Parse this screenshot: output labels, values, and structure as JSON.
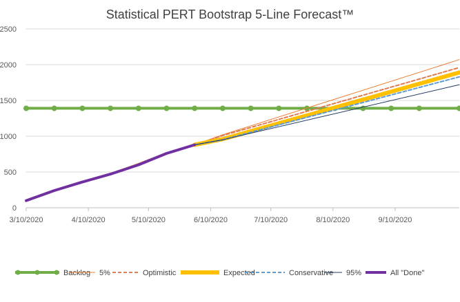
{
  "chart_data": {
    "type": "line",
    "title": "Statistical PERT Bootstrap 5-Line Forecast™",
    "xlabel": "",
    "ylabel": "",
    "x_axis": {
      "min_day": 0,
      "max_day": 216,
      "ticks": [
        {
          "day": 0,
          "label": "3/10/2020"
        },
        {
          "day": 31,
          "label": "4/10/2020"
        },
        {
          "day": 61,
          "label": "5/10/2020"
        },
        {
          "day": 92,
          "label": "6/10/2020"
        },
        {
          "day": 122,
          "label": "7/10/2020"
        },
        {
          "day": 153,
          "label": "8/10/2020"
        },
        {
          "day": 184,
          "label": "9/10/2020"
        }
      ]
    },
    "y_axis": {
      "min": 0,
      "max": 2500,
      "ticks": [
        {
          "value": 0,
          "label": "0"
        },
        {
          "value": 500,
          "label": "500"
        },
        {
          "value": 1000,
          "label": "1000"
        },
        {
          "value": 1500,
          "label": "1500"
        },
        {
          "value": 2000,
          "label": "2000"
        },
        {
          "value": 2500,
          "label": "2500"
        }
      ]
    },
    "grid": true,
    "legend_position": "bottom",
    "series": [
      {
        "name": "Backlog",
        "color": "#70ad47",
        "style": "solid",
        "width": 4,
        "markers": true,
        "points": [
          [
            0,
            1390
          ],
          [
            14,
            1390
          ],
          [
            28,
            1390
          ],
          [
            42,
            1390
          ],
          [
            56,
            1390
          ],
          [
            70,
            1390
          ],
          [
            84,
            1390
          ],
          [
            98,
            1390
          ],
          [
            112,
            1390
          ],
          [
            126,
            1390
          ],
          [
            140,
            1390
          ],
          [
            154,
            1390
          ],
          [
            168,
            1390
          ],
          [
            182,
            1390
          ],
          [
            196,
            1390
          ],
          [
            216,
            1390
          ]
        ]
      },
      {
        "name": "5%",
        "color": "#ed7d31",
        "style": "solid",
        "width": 1,
        "markers": false,
        "points": [
          [
            0,
            100
          ],
          [
            14,
            240
          ],
          [
            28,
            370
          ],
          [
            42,
            480
          ],
          [
            56,
            620
          ],
          [
            70,
            770
          ],
          [
            84,
            880
          ],
          [
            98,
            1020
          ],
          [
            216,
            2070
          ]
        ]
      },
      {
        "name": "Optimistic",
        "color": "#e07a50",
        "style": "dashed",
        "width": 2,
        "markers": false,
        "points": [
          [
            84,
            880
          ],
          [
            98,
            1010
          ],
          [
            216,
            1960
          ]
        ]
      },
      {
        "name": "Expected",
        "color": "#ffc000",
        "style": "solid",
        "width": 6,
        "markers": false,
        "points": [
          [
            84,
            880
          ],
          [
            98,
            960
          ],
          [
            216,
            1890
          ]
        ]
      },
      {
        "name": "Conservative",
        "color": "#5b9bd5",
        "style": "dashed",
        "width": 2,
        "markers": false,
        "points": [
          [
            84,
            880
          ],
          [
            98,
            950
          ],
          [
            216,
            1830
          ]
        ]
      },
      {
        "name": "95%",
        "color": "#1f3864",
        "style": "solid",
        "width": 1,
        "markers": false,
        "points": [
          [
            84,
            880
          ],
          [
            98,
            950
          ],
          [
            216,
            1720
          ]
        ]
      },
      {
        "name": "All \"Done\"",
        "color": "#7030a0",
        "style": "solid",
        "width": 4,
        "markers": false,
        "points": [
          [
            0,
            100
          ],
          [
            14,
            240
          ],
          [
            28,
            360
          ],
          [
            42,
            470
          ],
          [
            56,
            600
          ],
          [
            70,
            760
          ],
          [
            84,
            880
          ]
        ]
      }
    ]
  }
}
